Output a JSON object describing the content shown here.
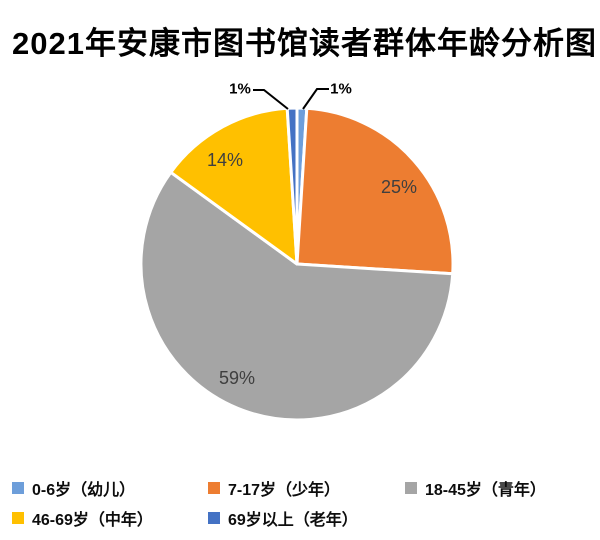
{
  "chart_data": {
    "type": "pie",
    "title": "2021年安康市图书馆读者群体年龄分析图",
    "unit": "percent",
    "legend_position": "bottom",
    "start_angle": "12-oclock-clockwise",
    "slices": [
      {
        "label": "0-6岁（幼儿）",
        "value": 1,
        "pct_label": "1%",
        "color": "#6D9EDA",
        "label_placement": "outside-right"
      },
      {
        "label": "7-17岁（少年）",
        "value": 25,
        "pct_label": "25%",
        "color": "#ED7D31",
        "label_placement": "inside"
      },
      {
        "label": "18-45岁（青年）",
        "value": 59,
        "pct_label": "59%",
        "color": "#A5A5A5",
        "label_placement": "inside"
      },
      {
        "label": "46-69岁（中年）",
        "value": 14,
        "pct_label": "14%",
        "color": "#FFC000",
        "label_placement": "inside"
      },
      {
        "label": "69岁以上（老年）",
        "value": 1,
        "pct_label": "1%",
        "color": "#4472C4",
        "label_placement": "outside-left"
      }
    ]
  }
}
